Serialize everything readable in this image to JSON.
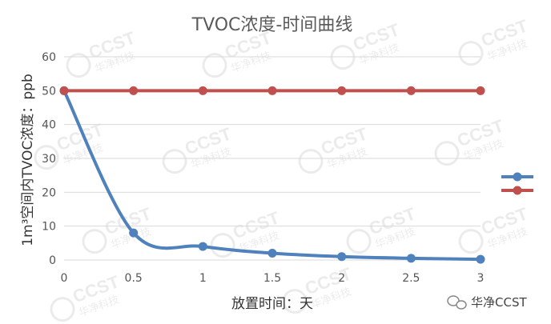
{
  "chart_data": {
    "type": "line",
    "title": "TVOC浓度-时间曲线",
    "xlabel": "放置时间：天",
    "ylabel": "1m³空间内TVOC浓度：ppb",
    "x": [
      0,
      0.5,
      1,
      1.5,
      2,
      2.5,
      3
    ],
    "x_tick_labels": [
      "0",
      "0.5",
      "1",
      "1.5",
      "2",
      "2.5",
      "3"
    ],
    "ylim": [
      0,
      60
    ],
    "y_ticks": [
      0,
      10,
      20,
      30,
      40,
      50,
      60
    ],
    "grid": true,
    "legend_position": "right",
    "series": [
      {
        "values": [
          50,
          8,
          4,
          2,
          1,
          0.5,
          0.2
        ],
        "color": "#4F81BD",
        "smooth": true
      },
      {
        "values": [
          50,
          50,
          50,
          50,
          50,
          50,
          50
        ],
        "color": "#C0504D",
        "smooth": false
      }
    ]
  },
  "watermark": {
    "text": "CCST",
    "subtext": "华净科技"
  },
  "footer_brand": {
    "text": "华净CCST",
    "icon": "wechat-icon"
  }
}
